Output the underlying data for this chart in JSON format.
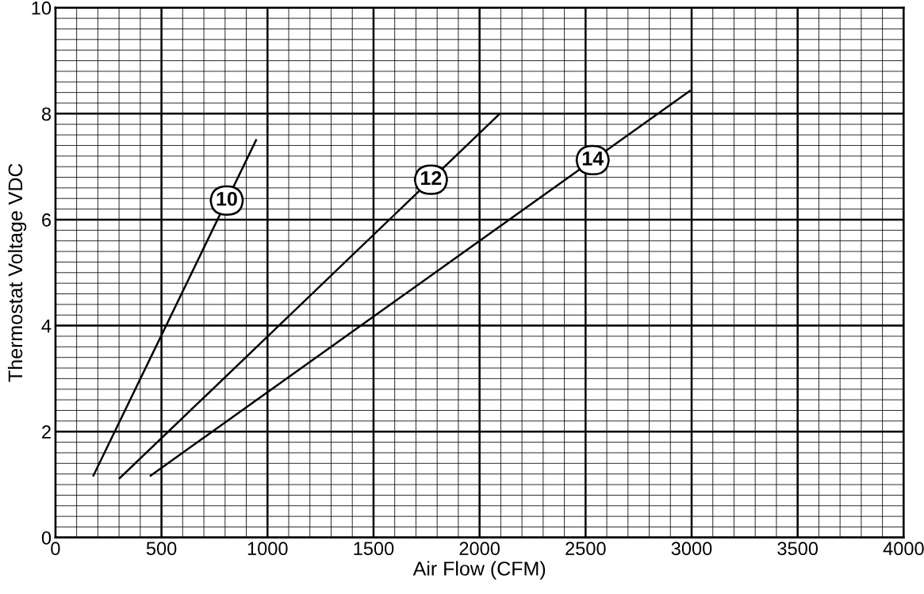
{
  "chart_data": {
    "type": "line",
    "xlabel": "Air Flow (CFM)",
    "ylabel": "Thermostat Voltage VDC",
    "xlim": [
      0,
      4000
    ],
    "xticks": [
      0,
      500,
      1000,
      1500,
      2000,
      2500,
      3000,
      3500,
      4000
    ],
    "ylim": [
      0,
      10
    ],
    "yticks": [
      0,
      2,
      4,
      6,
      8,
      10
    ],
    "grid": true,
    "marker": "none",
    "line_style": "solid",
    "series": [
      {
        "name": "10",
        "color": "#000000",
        "x": [
          179,
          946
        ],
        "values": [
          1.17,
          7.5
        ]
      },
      {
        "name": "12",
        "color": "#000000",
        "x": [
          303,
          2093
        ],
        "values": [
          1.12,
          7.99
        ]
      },
      {
        "name": "14",
        "color": "#000000",
        "x": [
          449,
          2991
        ],
        "values": [
          1.17,
          8.43
        ]
      }
    ]
  }
}
